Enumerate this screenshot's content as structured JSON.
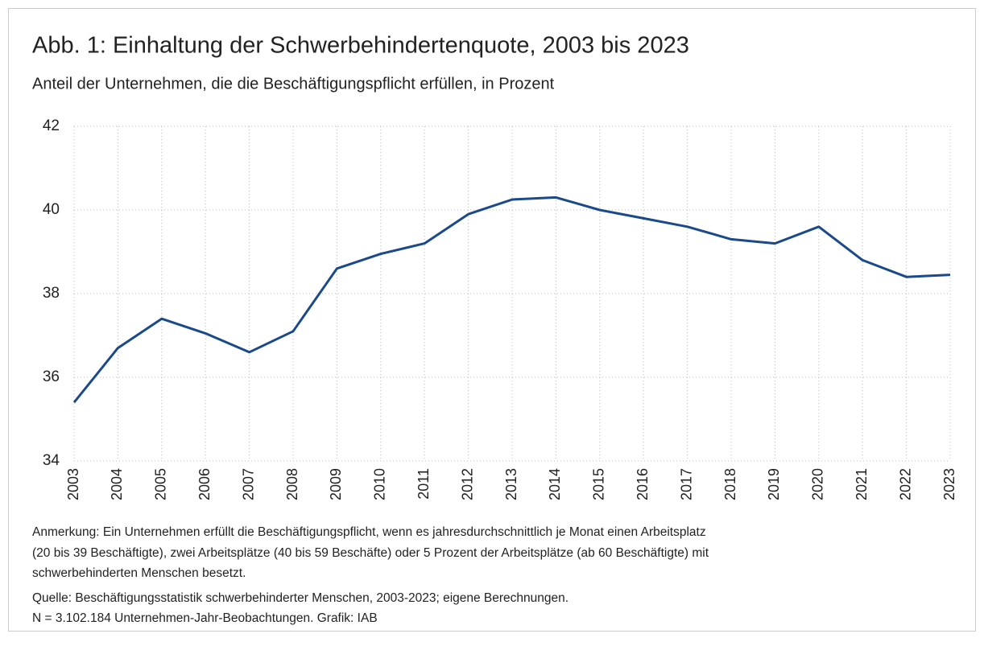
{
  "chart_data": {
    "type": "line",
    "title": "Abb. 1: Einhaltung der Schwerbehindertenquote, 2003 bis 2023",
    "subtitle": "Anteil der Unternehmen, die die Beschäftigungspflicht erfüllen, in Prozent",
    "categories": [
      "2003",
      "2004",
      "2005",
      "2006",
      "2007",
      "2008",
      "2009",
      "2010",
      "2011",
      "2012",
      "2013",
      "2014",
      "2015",
      "2016",
      "2017",
      "2018",
      "2019",
      "2020",
      "2021",
      "2022",
      "2023"
    ],
    "series": [
      {
        "name": "Anteil",
        "color": "#1a4a8a",
        "values": [
          35.4,
          36.7,
          37.4,
          37.05,
          36.6,
          37.1,
          38.6,
          38.95,
          39.2,
          39.9,
          40.25,
          40.3,
          40.0,
          39.8,
          39.6,
          39.3,
          39.2,
          39.6,
          38.8,
          38.4,
          38.45
        ]
      }
    ],
    "ylim": [
      34,
      42
    ],
    "yticks": [
      34,
      36,
      38,
      40,
      42
    ],
    "grid": true,
    "notes": [
      "Anmerkung: Ein Unternehmen erfüllt die Beschäftigungspflicht, wenn es jahresdurchschnittlich je Monat einen Arbeitsplatz",
      "(20 bis 39 Beschäftigte), zwei Arbeitsplätze (40 bis 59 Beschäfte) oder 5 Prozent der Arbeitsplätze (ab 60 Beschäftigte) mit",
      "schwerbehinderten Menschen besetzt.",
      "Quelle: Beschäftigungsstatistik schwerbehinderter Menschen, 2003-2023; eigene Berechnungen.",
      "N = 3.102.184 Unternehmen-Jahr-Beobachtungen. Grafik: IAB"
    ]
  }
}
